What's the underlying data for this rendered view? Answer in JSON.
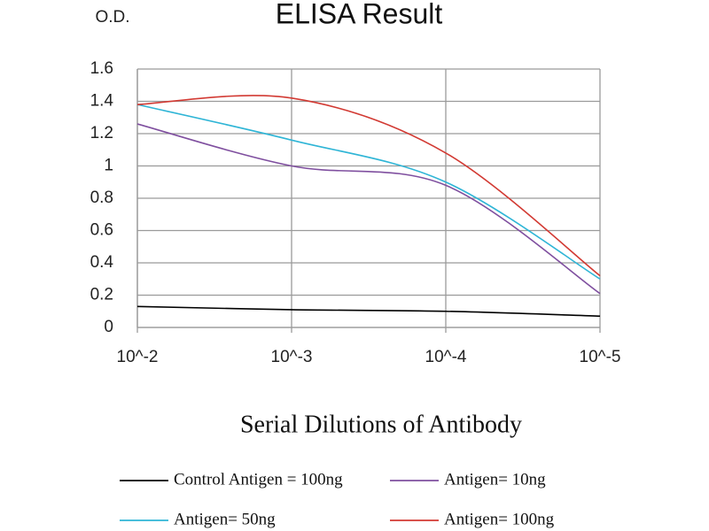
{
  "chart_data": {
    "type": "line",
    "title": "ELISA Result",
    "y_label": "O.D.",
    "x_label": "Serial Dilutions of Antibody",
    "categories": [
      "10^-2",
      "10^-3",
      "10^-4",
      "10^-5"
    ],
    "series": [
      {
        "name": "Control Antigen = 100ng",
        "color": "#000000",
        "values": [
          0.13,
          0.11,
          0.1,
          0.07
        ]
      },
      {
        "name": "Antigen= 10ng",
        "color": "#7f4f9f",
        "values": [
          1.26,
          1.0,
          0.88,
          0.21
        ]
      },
      {
        "name": "Antigen= 50ng",
        "color": "#2fb5d6",
        "values": [
          1.38,
          1.16,
          0.9,
          0.3
        ]
      },
      {
        "name": "Antigen= 100ng",
        "color": "#d23a33",
        "values": [
          1.38,
          1.42,
          1.08,
          0.32
        ]
      }
    ],
    "ylim": [
      0,
      1.6
    ],
    "yticks": [
      0,
      0.2,
      0.4,
      0.6,
      0.8,
      1,
      1.2,
      1.4,
      1.6
    ],
    "grid": true,
    "smooth": true,
    "legend": "bottom"
  }
}
